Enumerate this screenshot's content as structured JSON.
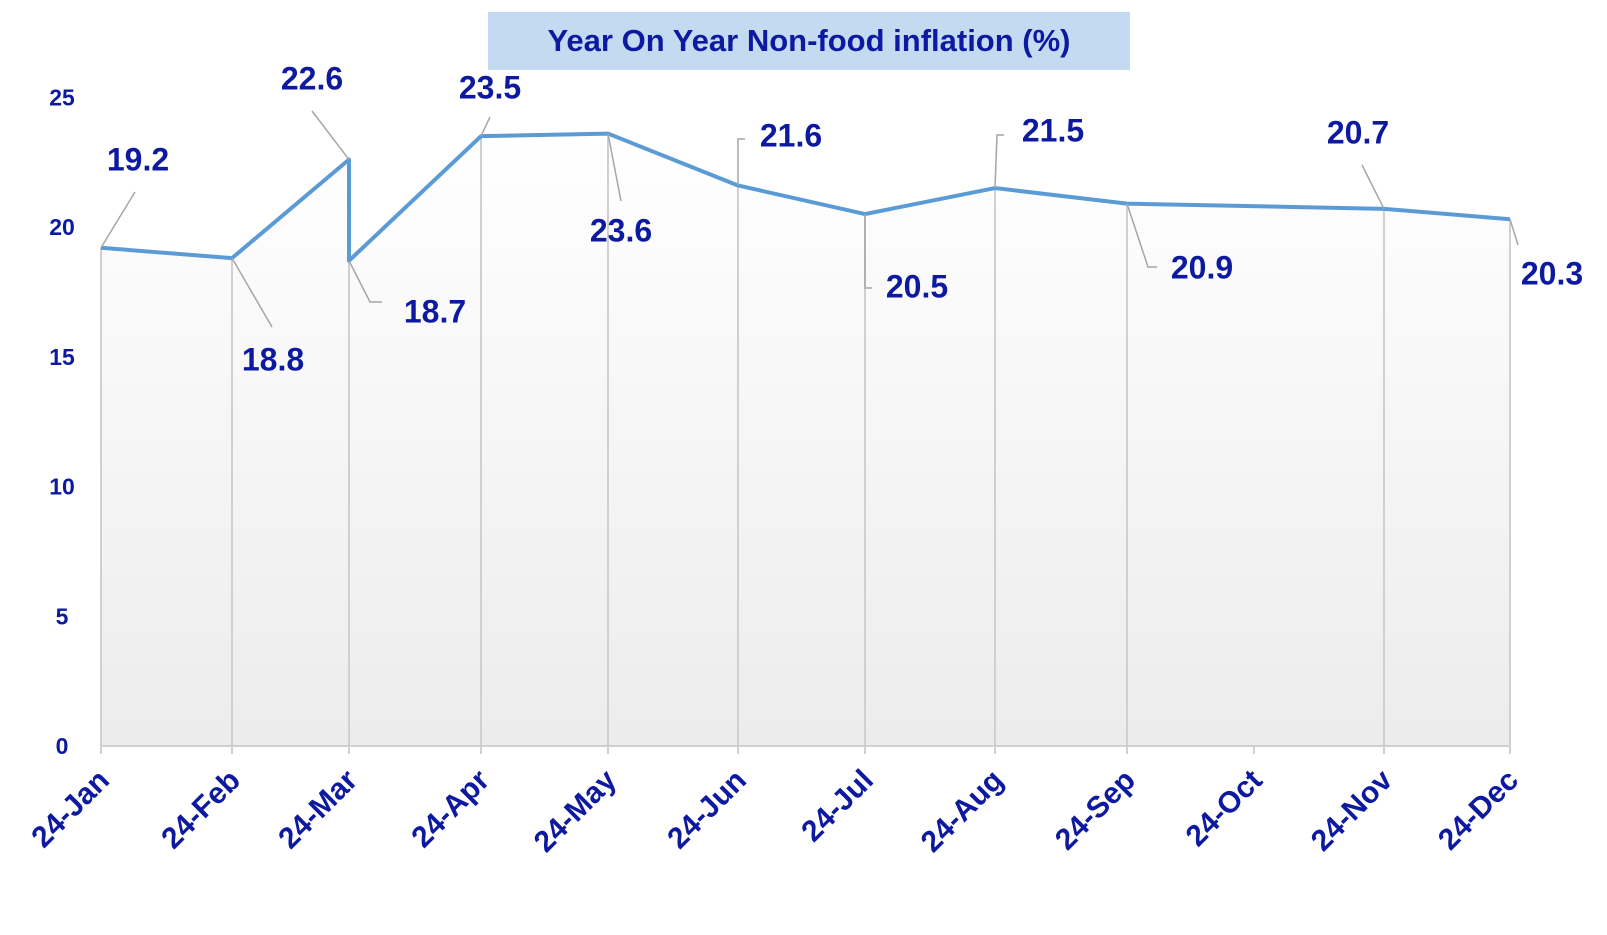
{
  "chart_data": {
    "type": "area",
    "title": "Year On Year Non-food inflation (%)",
    "xlabel": "",
    "ylabel": "",
    "ylim": [
      0,
      25
    ],
    "yticks": [
      "0",
      "5",
      "10",
      "15",
      "20",
      "25"
    ],
    "categories": [
      "24-Jan",
      "24-Feb",
      "24-Mar",
      "24-Apr",
      "24-May",
      "24-Jun",
      "24-Jul",
      "24-Aug",
      "24-Sep",
      "24-Oct",
      "24-Nov",
      "24-Dec"
    ],
    "points": [
      {
        "x": "24-Jan",
        "y": 19.2,
        "label": "19.2"
      },
      {
        "x": "24-Feb",
        "y": 18.8,
        "label": "18.8"
      },
      {
        "x": "24-Mar",
        "y": 22.6,
        "label": "22.6"
      },
      {
        "x": "24-Mar",
        "y": 18.7,
        "label": "18.7"
      },
      {
        "x": "24-Apr",
        "y": 23.5,
        "label": "23.5"
      },
      {
        "x": "24-May",
        "y": 23.6,
        "label": "23.6"
      },
      {
        "x": "24-Jun",
        "y": 21.6,
        "label": "21.6"
      },
      {
        "x": "24-Jul",
        "y": 20.5,
        "label": "20.5"
      },
      {
        "x": "24-Aug",
        "y": 21.5,
        "label": "21.5"
      },
      {
        "x": "24-Sep",
        "y": 20.9,
        "label": "20.9"
      },
      {
        "x": "24-Nov",
        "y": 20.7,
        "label": "20.7"
      },
      {
        "x": "24-Dec",
        "y": 20.3,
        "label": "20.3"
      }
    ],
    "grid": false,
    "colors": {
      "line": "#5b9bd5",
      "text": "#0d1aa0",
      "title_bg": "#c3daf0",
      "leader": "#a6a6a6",
      "drop_line": "#d0d0d0"
    }
  }
}
